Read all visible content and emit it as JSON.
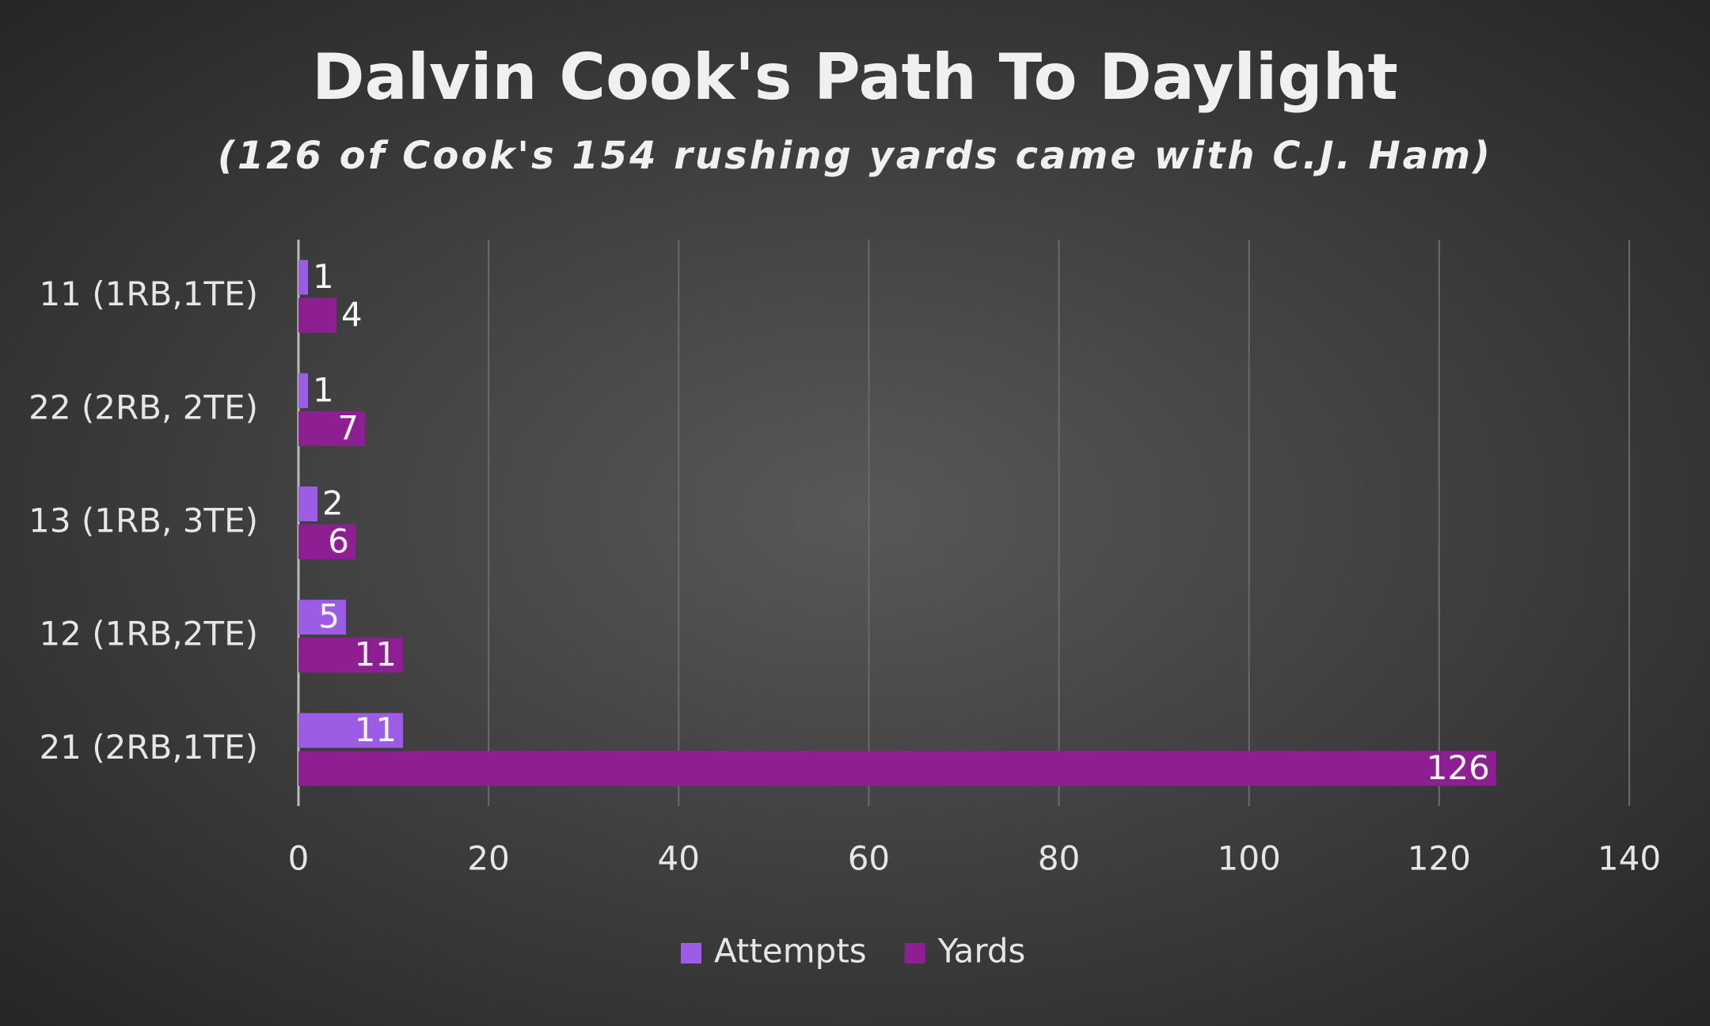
{
  "chart_data": {
    "type": "bar",
    "orientation": "horizontal",
    "title": "Dalvin Cook's Path To Daylight",
    "subtitle": "(126 of Cook's 154 rushing yards came with C.J. Ham)",
    "categories": [
      "11 (1RB,1TE)",
      "22 (2RB, 2TE)",
      "13 (1RB, 3TE)",
      "12 (1RB,2TE)",
      "21 (2RB,1TE)"
    ],
    "series": [
      {
        "name": "Attempts",
        "color": "#9d5ce6",
        "values": [
          1,
          1,
          2,
          5,
          11
        ]
      },
      {
        "name": "Yards",
        "color": "#8e1f92",
        "values": [
          4,
          7,
          6,
          11,
          126
        ]
      }
    ],
    "xlim": [
      0,
      140
    ],
    "xticks": [
      0,
      20,
      40,
      60,
      80,
      100,
      120,
      140
    ],
    "grid": true,
    "legend": "bottom"
  }
}
